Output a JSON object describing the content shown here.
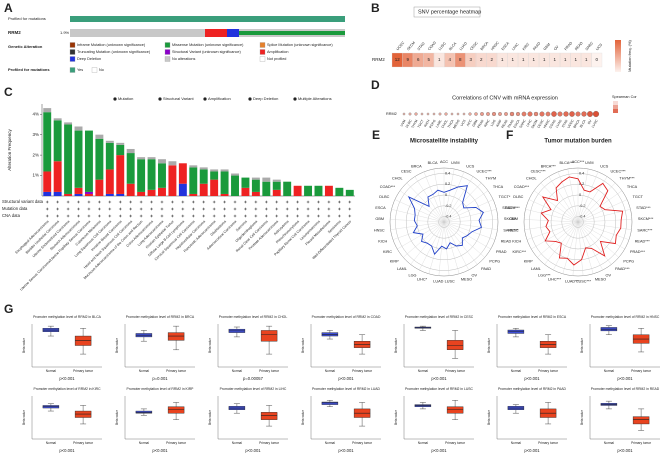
{
  "chart_data": [
    {
      "type": "oncoprint",
      "label": "A",
      "rows": [
        {
          "label": "Profiled for mutations"
        },
        {
          "label": "RRM2",
          "value": 1.9,
          "value_label": "1.9%"
        }
      ],
      "legend_title": "Genetic Alteration",
      "legend": [
        {
          "name": "Inframe Mutation (unknown significance)",
          "color": "#993404"
        },
        {
          "name": "Missense Mutation (unknown significance)",
          "color": "#1a9a3c"
        },
        {
          "name": "Splice Mutation (unknown significance)",
          "color": "#e5802b"
        },
        {
          "name": "Truncating Mutation (unknown significance)",
          "color": "#333333"
        },
        {
          "name": "Structural Variant (unknown significance)",
          "color": "#8b00c9"
        },
        {
          "name": "Amplification",
          "color": "#ee2222"
        },
        {
          "name": "Deep Deletion",
          "color": "#2233dd"
        },
        {
          "name": "No alterations",
          "color": "#c8c8c8"
        },
        {
          "name": "Not profiled",
          "color": "#ffffff"
        }
      ],
      "profiled_title": "Profiled for mutations",
      "profiled_items": [
        {
          "name": "Yes",
          "color": "#3a9e7b"
        },
        {
          "name": "No",
          "color": "#ffffff"
        }
      ]
    },
    {
      "type": "heatmap",
      "label": "B",
      "title": "SNV percentage heatmap",
      "row": "RRM2",
      "categories": [
        "UCEC",
        "SKCM",
        "STAD",
        "COAD",
        "LUSC",
        "BLCA",
        "LUAD",
        "CESC",
        "BRCA",
        "HNSC",
        "ESCA",
        "LIHC",
        "KIRC",
        "PAAD",
        "GBM",
        "OV",
        "PRAD",
        "READ",
        "SARC",
        "UCS"
      ],
      "values": [
        12,
        9,
        6,
        5,
        1,
        4,
        8,
        3,
        2,
        2,
        1,
        1,
        1,
        1,
        1,
        1,
        1,
        1,
        1,
        0
      ],
      "clim": [
        0,
        12
      ],
      "color": "#e0572a",
      "legend_title": "Mutation freq. (%)"
    },
    {
      "type": "bar",
      "label": "C",
      "y_label": "Alteration Frequency",
      "categories": [
        "Esophageal Adenocarcinoma",
        "Bladder Urothelial Carcinoma",
        "Uterine Endometrioid Carcinoma",
        "Stomach Adenocarcinoma",
        "Uterine Serous Carcinoma/Uterine Papillary Serous Carcinoma",
        "Cutaneous Melanoma",
        "Lung Squamous Cell Carcinoma",
        "Invasive Breast Carcinoma",
        "Head and Neck Squamous Cell Carcinoma",
        "Mucinous Adenocarcinoma of the Colon and Rectum",
        "Colon Adenocarcinoma",
        "Lung Adenocarcinoma",
        "Ovarian Epithelial Tumor",
        "Diffuse Large B-Cell Lymphoma",
        "Cervical Squamous Cell Carcinoma",
        "Hepatocellular Carcinoma",
        "Pancreatic Adenocarcinoma",
        "Glioblastoma",
        "Adrenocortical Carcinoma",
        "Sarcoma",
        "Oligodendroglioma",
        "Renal Clear Cell Carcinoma",
        "Prostate Adenocarcinoma",
        "Astrocytoma",
        "Pheochromocytoma",
        "Papillary Renal Cell Carcinoma",
        "Leiomyosarcoma",
        "Pleural Mesothelioma",
        "Seminoma",
        "Well-Differentiated Thyroid Cancer"
      ],
      "series": [
        {
          "name": "Mutation",
          "color": "#1a9a3c",
          "values": [
            2.9,
            2.0,
            3.4,
            2.8,
            3.0,
            2.0,
            1.3,
            0.5,
            1.5,
            1.6,
            1.5,
            1.2,
            0,
            0,
            1.3,
            0.7,
            0.4,
            1.1,
            1.0,
            0.5,
            0.6,
            0.7,
            0.4,
            0.7,
            0,
            0.5,
            0.5,
            0,
            0.4,
            0.3
          ]
        },
        {
          "name": "Structural Variant",
          "color": "#8b00c9",
          "values": [
            0,
            0,
            0,
            0,
            0.1,
            0,
            0,
            0,
            0,
            0,
            0,
            0,
            0,
            0,
            0,
            0,
            0,
            0,
            0,
            0,
            0,
            0,
            0,
            0,
            0,
            0,
            0,
            0,
            0,
            0
          ]
        },
        {
          "name": "Amplification",
          "color": "#ee2222",
          "values": [
            1.0,
            1.5,
            0.1,
            0.3,
            0.1,
            0.8,
            1.2,
            1.9,
            0.6,
            0.2,
            0.3,
            0.4,
            1.5,
            1.0,
            0.1,
            0.6,
            0.8,
            0.1,
            0,
            0.4,
            0.2,
            0,
            0.3,
            0,
            0.5,
            0,
            0,
            0.5,
            0,
            0
          ]
        },
        {
          "name": "Deep Deletion",
          "color": "#2233dd",
          "values": [
            0.2,
            0.2,
            0,
            0.1,
            0,
            0,
            0.1,
            0.1,
            0,
            0,
            0,
            0,
            0,
            0.6,
            0,
            0,
            0,
            0,
            0,
            0,
            0,
            0,
            0,
            0,
            0,
            0,
            0,
            0,
            0,
            0
          ]
        },
        {
          "name": "Multiple Alterations",
          "color": "#aaaaaa",
          "values": [
            0.2,
            0.1,
            0.1,
            0.2,
            0,
            0.2,
            0.1,
            0.1,
            0.2,
            0.1,
            0.1,
            0.2,
            0.2,
            0,
            0.1,
            0.1,
            0.1,
            0.1,
            0.1,
            0,
            0.1,
            0.2,
            0.1,
            0,
            0,
            0,
            0,
            0,
            0,
            0
          ]
        }
      ],
      "ylim": [
        0,
        4.5
      ],
      "yticks": [
        {
          "value": 1,
          "label": "1%"
        },
        {
          "value": 2,
          "label": "2%"
        },
        {
          "value": 3,
          "label": "3%"
        },
        {
          "value": 4,
          "label": "4%"
        }
      ],
      "track_labels": [
        "Structural variant data",
        "Mutation data",
        "CNA data"
      ]
    },
    {
      "type": "dot",
      "label": "D",
      "title": "Correlations of CNV with mRNA expression",
      "row": "RRM2",
      "categories": [
        "UVM",
        "DLBC",
        "THYM",
        "TGCT",
        "KICH",
        "PCPG",
        "LAML",
        "CHOL",
        "THCA",
        "MESO",
        "UCS",
        "ACC",
        "GBM",
        "PRAD",
        "KIRC",
        "LGG",
        "KIRP",
        "READ",
        "PAAD",
        "ESCA",
        "SARC",
        "LIHC",
        "SKCM",
        "CESC",
        "HNSC",
        "COAD",
        "LUAD",
        "STAD",
        "UCEC",
        "BRCA",
        "BLCA",
        "OV",
        "LUSC"
      ],
      "values": [
        0.1,
        0.15,
        0.2,
        0.1,
        0.1,
        0.1,
        0.15,
        0.2,
        0.1,
        0.1,
        0.1,
        0.2,
        0.25,
        0.3,
        0.3,
        0.35,
        0.3,
        0.3,
        0.4,
        0.35,
        0.45,
        0.5,
        0.4,
        0.5,
        0.45,
        0.6,
        0.5,
        0.55,
        0.6,
        0.5,
        0.55,
        0.65,
        0.7
      ],
      "color": "#d9472b",
      "legend_title": "Spearman Cor"
    },
    {
      "type": "radar",
      "label": "E",
      "title": "Microsatellite instability",
      "color": "#1f3fc8",
      "categories": [
        "ACC",
        "UVM",
        "UCS",
        "UCEC***",
        "THYM",
        "THCA",
        "TGCT*",
        "STAD***",
        "SKCM*",
        "SARC***",
        "READ",
        "PRAD",
        "PCPG",
        "PAAD",
        "OV",
        "MESO",
        "LUSC",
        "LUAD",
        "LIHC*",
        "LGG",
        "LAML",
        "KIRP",
        "KIRC",
        "KICH",
        "HNSC",
        "GBM",
        "ESCA",
        "DLBC",
        "COAD***",
        "CHOL",
        "CESC",
        "BRCA",
        "BLCA"
      ],
      "values": [
        0.05,
        0.1,
        0.2,
        0.3,
        0.0,
        -0.05,
        0.15,
        0.25,
        0.15,
        0.2,
        0.05,
        0.0,
        -0.05,
        0.05,
        0.0,
        -0.1,
        0.0,
        -0.05,
        0.12,
        0.0,
        0.0,
        0.05,
        -0.05,
        0.1,
        0.0,
        0.05,
        0.05,
        0.1,
        0.3,
        -0.1,
        0.05,
        0.05,
        0.1
      ],
      "rlim": [
        -0.5,
        0.5
      ],
      "rticks": [
        -0.4,
        -0.2,
        0,
        0.2,
        0.4
      ]
    },
    {
      "type": "radar",
      "label": "F",
      "title": "Tumor mutation burden",
      "color": "#e01f1f",
      "categories": [
        "ACC***",
        "UVM",
        "UCS",
        "UCEC***",
        "THYM***",
        "THCA",
        "TGCT",
        "STAD***",
        "SKCM***",
        "SARC***",
        "READ***",
        "PRAD***",
        "PCPG",
        "PAAD***",
        "OV",
        "MESO",
        "LUSC***",
        "LUAD***",
        "LIHC***",
        "LGG***",
        "LAML",
        "KIRP",
        "KIRC***",
        "KICH",
        "HNSC",
        "GBM",
        "ESCA***",
        "DLBC",
        "COAD***",
        "CHOL",
        "CESC***",
        "BRCA***",
        "BLCA***"
      ],
      "values": [
        0.3,
        0.1,
        0.1,
        0.35,
        0.3,
        0.0,
        0.05,
        0.35,
        0.3,
        0.3,
        0.25,
        0.3,
        0.05,
        0.3,
        0.05,
        0.0,
        0.2,
        0.3,
        0.2,
        0.25,
        0.0,
        0.05,
        0.2,
        0.05,
        0.1,
        0.05,
        0.2,
        0.05,
        0.3,
        0.05,
        0.25,
        0.3,
        0.35
      ],
      "rlim": [
        -0.5,
        0.5
      ],
      "rticks": [
        -0.4,
        -0.2,
        0,
        0.2,
        0.4
      ]
    },
    {
      "type": "box",
      "label": "G",
      "y_label": "Beta value",
      "groups": [
        "Normal",
        "Primary tumor"
      ],
      "colors": [
        "#3f4fd8",
        "#e8431f"
      ],
      "ylim": [
        0,
        1
      ],
      "plots": [
        {
          "title": "Promoter methylation level of RRM2 in BLCA",
          "p": "p<0.001",
          "boxes": [
            [
              0.72,
              0.82,
              0.86,
              0.9,
              0.95
            ],
            [
              0.3,
              0.5,
              0.62,
              0.72,
              0.9
            ]
          ]
        },
        {
          "title": "Promoter methylation level of RRM2 in BRCA",
          "p": "p=0.001",
          "boxes": [
            [
              0.6,
              0.7,
              0.74,
              0.78,
              0.85
            ],
            [
              0.4,
              0.62,
              0.72,
              0.8,
              0.95
            ]
          ]
        },
        {
          "title": "Promoter methylation level of RRM2 in CHOL",
          "p": "p=0.00057",
          "boxes": [
            [
              0.7,
              0.8,
              0.84,
              0.88,
              0.93
            ],
            [
              0.3,
              0.6,
              0.75,
              0.85,
              0.95
            ]
          ]
        },
        {
          "title": "Promoter methylation level of RRM2 in COAD",
          "p": "p<0.001",
          "boxes": [
            [
              0.65,
              0.72,
              0.76,
              0.8,
              0.85
            ],
            [
              0.3,
              0.45,
              0.52,
              0.6,
              0.75
            ]
          ]
        },
        {
          "title": "Promoter methylation level of RRM2 in CESC",
          "p": "p<0.001",
          "boxes": [
            [
              0.85,
              0.9,
              0.92,
              0.93,
              0.95
            ],
            [
              0.2,
              0.4,
              0.5,
              0.62,
              0.85
            ]
          ]
        },
        {
          "title": "Promoter methylation level of RRM2 in ESCA",
          "p": "p<0.001",
          "boxes": [
            [
              0.7,
              0.78,
              0.82,
              0.86,
              0.9
            ],
            [
              0.3,
              0.45,
              0.52,
              0.6,
              0.75
            ]
          ]
        },
        {
          "title": "Promoter methylation level of RRM2 in HNSC",
          "p": "p<0.001",
          "boxes": [
            [
              0.75,
              0.84,
              0.88,
              0.92,
              0.96
            ],
            [
              0.35,
              0.55,
              0.65,
              0.75,
              0.9
            ]
          ]
        },
        {
          "title": "Promoter methylation level of RRM2 in KIRC",
          "p": "p<0.001",
          "boxes": [
            [
              0.65,
              0.72,
              0.75,
              0.78,
              0.82
            ],
            [
              0.35,
              0.5,
              0.58,
              0.65,
              0.78
            ]
          ]
        },
        {
          "title": "Promoter methylation level of RRM2 in KIRP",
          "p": "p<0.001",
          "boxes": [
            [
              0.55,
              0.6,
              0.62,
              0.65,
              0.7
            ],
            [
              0.45,
              0.6,
              0.68,
              0.75,
              0.85
            ]
          ]
        },
        {
          "title": "Promoter methylation level of RRM2 in LIHC",
          "p": "p<0.001",
          "boxes": [
            [
              0.6,
              0.68,
              0.72,
              0.76,
              0.82
            ],
            [
              0.3,
              0.45,
              0.55,
              0.62,
              0.78
            ]
          ]
        },
        {
          "title": "Promoter methylation level of RRM2 in LUAD",
          "p": "p<0.001",
          "boxes": [
            [
              0.75,
              0.8,
              0.84,
              0.86,
              0.9
            ],
            [
              0.3,
              0.5,
              0.6,
              0.7,
              0.85
            ]
          ]
        },
        {
          "title": "Promoter methylation level of RRM2 in LUSC",
          "p": "p<0.001",
          "boxes": [
            [
              0.7,
              0.75,
              0.78,
              0.8,
              0.85
            ],
            [
              0.45,
              0.6,
              0.68,
              0.75,
              0.9
            ]
          ]
        },
        {
          "title": "Promoter methylation level of RRM2 in PAAD",
          "p": "p<0.001",
          "boxes": [
            [
              0.6,
              0.68,
              0.72,
              0.76,
              0.8
            ],
            [
              0.35,
              0.5,
              0.6,
              0.7,
              0.85
            ]
          ]
        },
        {
          "title": "Promoter methylation level of RRM2 in READ",
          "p": "p<0.001",
          "boxes": [
            [
              0.7,
              0.78,
              0.8,
              0.83,
              0.88
            ],
            [
              0.2,
              0.35,
              0.45,
              0.52,
              0.7
            ]
          ]
        }
      ]
    }
  ]
}
